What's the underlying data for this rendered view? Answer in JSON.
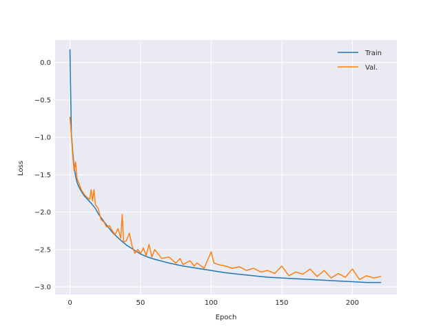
{
  "chart_data": {
    "type": "line",
    "title": "",
    "xlabel": "Epoch",
    "ylabel": "Loss",
    "xlim": [
      -10.5,
      231.5
    ],
    "ylim": [
      -3.1,
      0.3
    ],
    "xticks": [
      0,
      50,
      100,
      150,
      200
    ],
    "xtick_labels": [
      "0",
      "50",
      "100",
      "150",
      "200"
    ],
    "yticks": [
      0.0,
      -0.5,
      -1.0,
      -1.5,
      -2.0,
      -2.5,
      -3.0
    ],
    "ytick_labels": [
      "0.0",
      "−0.5",
      "−1.0",
      "−1.5",
      "−2.0",
      "−2.5",
      "−3.0"
    ],
    "grid": true,
    "style": "seaborn-darkgrid",
    "legend_position": "top-right",
    "series": [
      {
        "name": "Train",
        "color": "#1f77b4",
        "x": [
          0,
          1,
          2,
          3,
          4,
          5,
          6,
          8,
          10,
          12,
          15,
          18,
          20,
          25,
          30,
          35,
          40,
          45,
          50,
          55,
          60,
          70,
          80,
          90,
          100,
          110,
          120,
          130,
          140,
          150,
          160,
          170,
          180,
          190,
          200,
          210,
          220
        ],
        "y": [
          0.17,
          -0.95,
          -1.2,
          -1.4,
          -1.52,
          -1.6,
          -1.65,
          -1.72,
          -1.78,
          -1.82,
          -1.88,
          -1.95,
          -2.02,
          -2.15,
          -2.27,
          -2.36,
          -2.44,
          -2.5,
          -2.56,
          -2.6,
          -2.63,
          -2.68,
          -2.72,
          -2.75,
          -2.78,
          -2.81,
          -2.83,
          -2.85,
          -2.87,
          -2.88,
          -2.89,
          -2.9,
          -2.91,
          -2.92,
          -2.93,
          -2.94,
          -2.94
        ]
      },
      {
        "name": "Val.",
        "color": "#ff7f0e",
        "x": [
          0,
          1,
          2,
          3,
          4,
          5,
          6,
          8,
          10,
          12,
          14,
          15,
          16,
          17,
          18,
          20,
          22,
          24,
          26,
          28,
          30,
          32,
          34,
          36,
          37,
          38,
          40,
          42,
          44,
          46,
          48,
          50,
          52,
          54,
          56,
          58,
          60,
          65,
          70,
          75,
          78,
          80,
          85,
          88,
          90,
          95,
          100,
          102,
          105,
          110,
          115,
          120,
          125,
          130,
          135,
          140,
          145,
          150,
          155,
          160,
          165,
          170,
          175,
          180,
          185,
          190,
          195,
          200,
          205,
          210,
          215,
          220
        ],
        "y": [
          -0.73,
          -0.98,
          -1.25,
          -1.45,
          -1.33,
          -1.55,
          -1.6,
          -1.7,
          -1.76,
          -1.8,
          -1.83,
          -1.7,
          -1.85,
          -1.7,
          -1.9,
          -1.95,
          -2.1,
          -2.13,
          -2.2,
          -2.18,
          -2.25,
          -2.3,
          -2.22,
          -2.35,
          -2.03,
          -2.4,
          -2.38,
          -2.28,
          -2.45,
          -2.55,
          -2.5,
          -2.55,
          -2.48,
          -2.58,
          -2.43,
          -2.6,
          -2.5,
          -2.62,
          -2.6,
          -2.68,
          -2.62,
          -2.7,
          -2.65,
          -2.72,
          -2.68,
          -2.75,
          -2.53,
          -2.68,
          -2.7,
          -2.72,
          -2.75,
          -2.73,
          -2.78,
          -2.75,
          -2.8,
          -2.78,
          -2.82,
          -2.72,
          -2.85,
          -2.8,
          -2.83,
          -2.76,
          -2.86,
          -2.78,
          -2.88,
          -2.82,
          -2.87,
          -2.76,
          -2.9,
          -2.85,
          -2.88,
          -2.86
        ]
      }
    ]
  }
}
